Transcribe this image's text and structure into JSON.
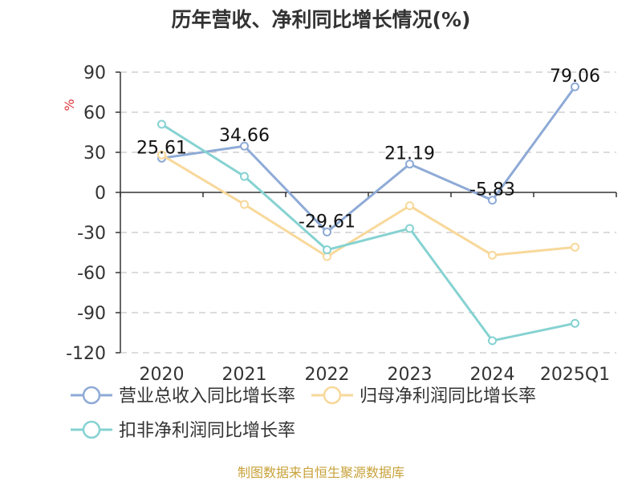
{
  "chart_data": {
    "type": "line",
    "title": "历年营收、净利同比增长情况(%)",
    "y_unit": "%",
    "categories": [
      "2020",
      "2021",
      "2022",
      "2023",
      "2024",
      "2025Q1"
    ],
    "ylim": [
      -120,
      90
    ],
    "yticks": [
      90,
      60,
      30,
      0,
      -30,
      -60,
      -90,
      -120
    ],
    "grid": true,
    "legend_position": "bottom",
    "series": [
      {
        "name": "营业总收入同比增长率",
        "color": "#8eaad6",
        "values": [
          25.61,
          34.66,
          -29.61,
          21.19,
          -5.83,
          79.06
        ],
        "labels": [
          "25.61",
          "34.66",
          "-29.61",
          "21.19",
          "-5.83",
          "79.06"
        ]
      },
      {
        "name": "归母净利润同比增长率",
        "color": "#f8d89a",
        "values": [
          28,
          -9,
          -48,
          -10,
          -47,
          -41
        ]
      },
      {
        "name": "扣非净利润同比增长率",
        "color": "#86d2d2",
        "values": [
          51,
          12,
          -43,
          -27,
          -111,
          -98
        ]
      }
    ]
  },
  "footer": {
    "source": "制图数据来自恒生聚源数据库"
  }
}
